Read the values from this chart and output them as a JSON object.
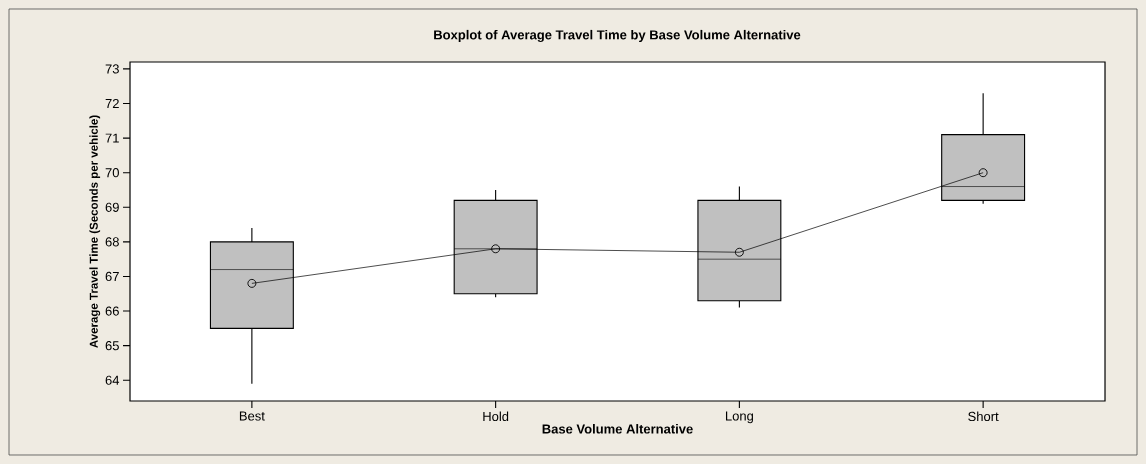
{
  "chart_data": {
    "type": "box",
    "title": "Boxplot of Average Travel Time by Base Volume Alternative",
    "xlabel": "Base Volume Alternative",
    "ylabel": "Average Travel Time (Seconds per vehicle)",
    "categories": [
      "Best",
      "Hold",
      "Long",
      "Short"
    ],
    "series": [
      {
        "color": "#c0c0c0",
        "boxes": [
          {
            "low": 63.9,
            "q1": 65.5,
            "median": 67.2,
            "q3": 68.0,
            "high": 68.4
          },
          {
            "low": 66.4,
            "q1": 66.5,
            "median": 67.8,
            "q3": 69.2,
            "high": 69.5
          },
          {
            "low": 66.1,
            "q1": 66.3,
            "median": 67.5,
            "q3": 69.2,
            "high": 69.6
          },
          {
            "low": 69.1,
            "q1": 69.2,
            "median": 69.6,
            "q3": 71.1,
            "high": 72.3
          }
        ]
      },
      {
        "type": "line",
        "color": "#000000",
        "values": [
          66.8,
          67.8,
          67.7,
          70.0
        ]
      }
    ],
    "marker": "circle",
    "ylim": [
      63.4,
      73.2
    ],
    "yticks": [
      64,
      65,
      66,
      67,
      68,
      69,
      70,
      71,
      72,
      73
    ]
  }
}
